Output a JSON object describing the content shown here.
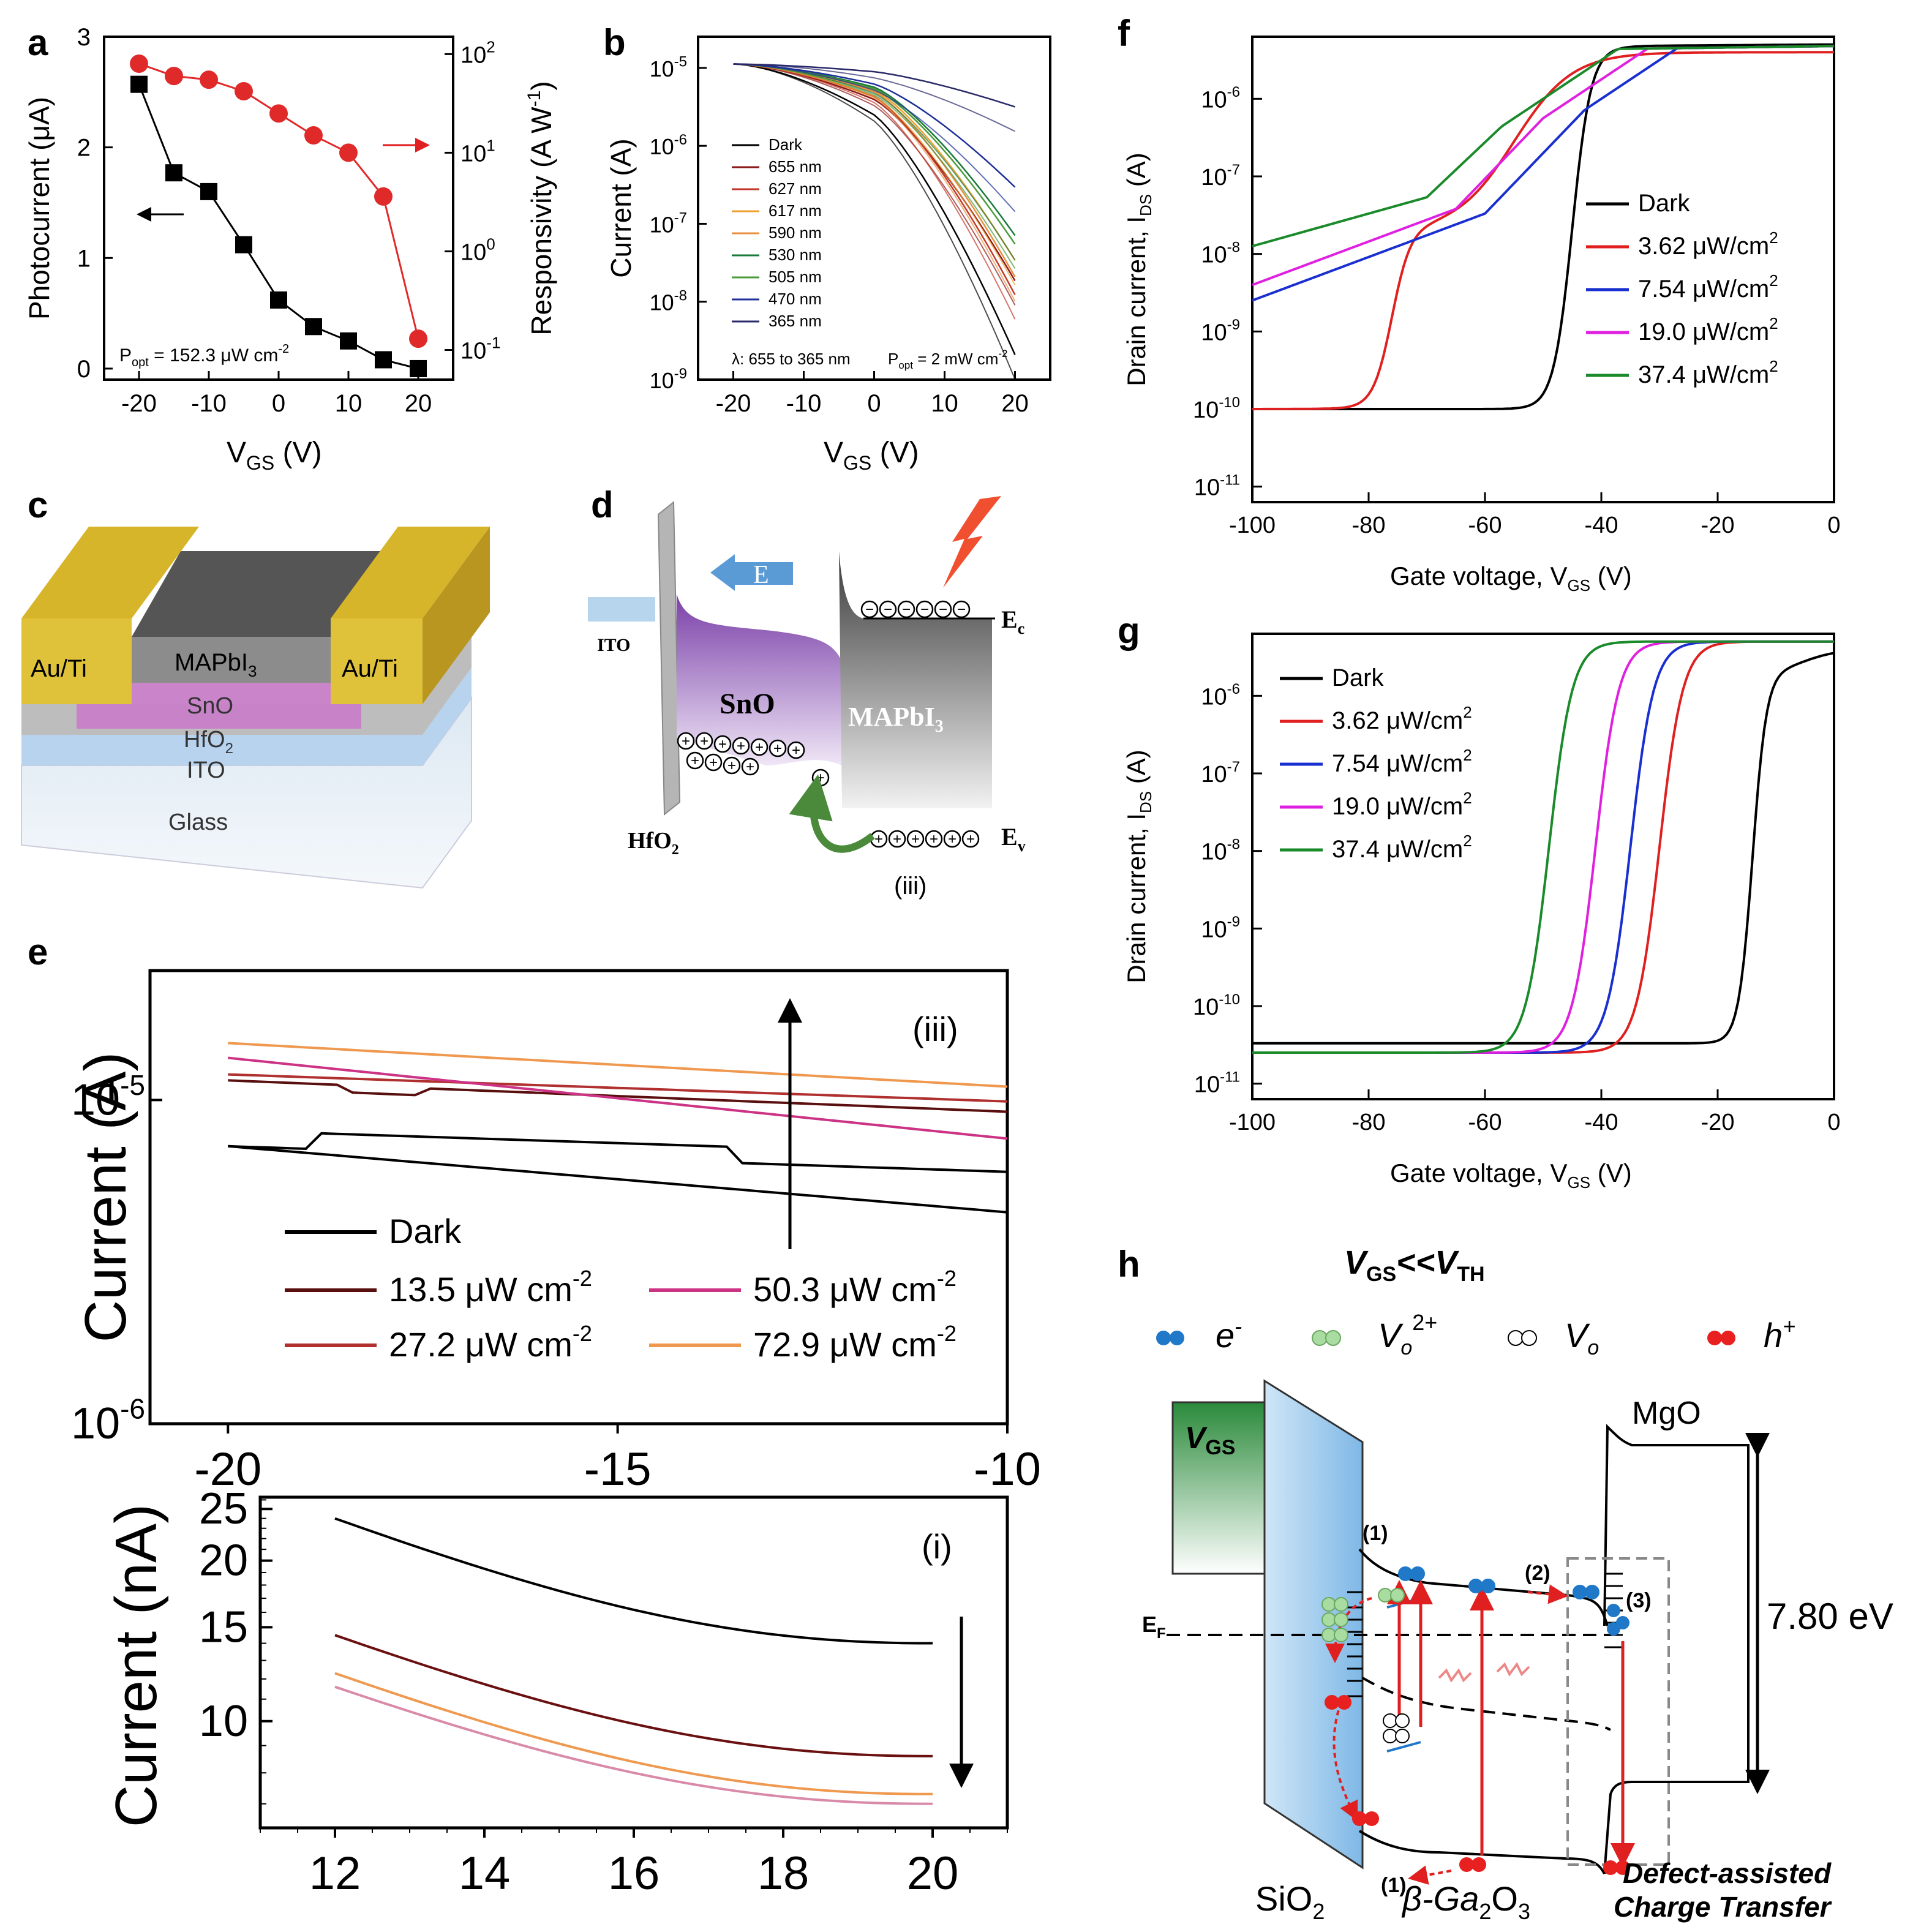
{
  "panel_labels": {
    "a": "a",
    "b": "b",
    "c": "c",
    "d": "d",
    "e": "e",
    "f": "f",
    "g": "g",
    "h": "h"
  },
  "chart_data": [
    {
      "id": "a",
      "type": "scatter",
      "xlabel": "V",
      "xlabel_sub": "GS",
      "xlabel_tail": " (V)",
      "ylabel": "Photocurrent (μA)",
      "y2label": "Responsivity (A W",
      "y2label_tail": ")",
      "y2label_sup": "-1",
      "annotation": "P",
      "annotation_sub": "opt",
      "annotation_tail": " = 152.3 μW cm",
      "annotation_sup": "-2",
      "xlim": [
        -25,
        25
      ],
      "ylim": [
        -0.1,
        3.0
      ],
      "y2lim": [
        0.05,
        150
      ],
      "xticks": [
        "-20",
        "-10",
        "0",
        "10",
        "20"
      ],
      "yticks": [
        "0",
        "1",
        "2",
        "3"
      ],
      "y2ticks_base": [
        "10",
        "10",
        "10",
        "10"
      ],
      "y2ticks_exp": [
        "-1",
        "0",
        "1",
        "2"
      ],
      "series": [
        {
          "name": "Photocurrent",
          "axis": "left",
          "color": "#000000",
          "x": [
            -20,
            -15,
            -10,
            -5,
            0,
            5,
            10,
            15,
            20
          ],
          "y": [
            2.57,
            1.77,
            1.6,
            1.12,
            0.62,
            0.38,
            0.25,
            0.08,
            0.0
          ]
        },
        {
          "name": "Responsivity",
          "axis": "right",
          "color": "#e02a2a",
          "x": [
            -20,
            -15,
            -10,
            -5,
            0,
            5,
            10,
            15,
            20
          ],
          "y": [
            80,
            60,
            55,
            42,
            25,
            15,
            10,
            3.6,
            0.13
          ]
        }
      ]
    },
    {
      "id": "b",
      "type": "line",
      "xlabel": "V",
      "xlabel_sub": "GS",
      "xlabel_tail": " (V)",
      "ylabel": "Current (A)",
      "xlim": [
        -25,
        25
      ],
      "ylim_log10": [
        -9,
        -4.6
      ],
      "xticks": [
        "-20",
        "-10",
        "0",
        "10",
        "20"
      ],
      "yticks_exp": [
        "-9",
        "-8",
        "-7",
        "-6",
        "-5"
      ],
      "annotation_left": "λ: 655 to 365 nm",
      "annotation_right": "P",
      "annotation_right_sub": "opt",
      "annotation_right_tail": " = 2 mW cm",
      "annotation_right_sup": "-2",
      "series": [
        {
          "name": "Dark",
          "color": "#000000",
          "end_log": -8.35,
          "mid_log": -6.6
        },
        {
          "name": "655 nm",
          "color": "#8b1a1a",
          "end_log": -7.5,
          "mid_log": -6.1
        },
        {
          "name": "627 nm",
          "color": "#c0392b",
          "end_log": -7.7,
          "mid_log": -6.0
        },
        {
          "name": "617 nm",
          "color": "#f0a030",
          "end_log": -7.3,
          "mid_log": -5.8
        },
        {
          "name": "590 nm",
          "color": "#e89040",
          "end_log": -7.5,
          "mid_log": -5.85
        },
        {
          "name": "530 nm",
          "color": "#1a7a3a",
          "end_log": -7.0,
          "mid_log": -5.7
        },
        {
          "name": "505 nm",
          "color": "#4a9a3a",
          "end_log": -7.1,
          "mid_log": -5.75
        },
        {
          "name": "470 nm",
          "color": "#1f2f9a",
          "end_log": -6.4,
          "mid_log": -5.6
        },
        {
          "name": "365 nm",
          "color": "#2a2a6a",
          "end_log": -5.45,
          "mid_log": -5.2
        }
      ]
    },
    {
      "id": "e_top",
      "type": "line",
      "ylabel": "Current (A)",
      "xlim": [
        -21,
        -10
      ],
      "ylim_log10": [
        -6,
        -4.6
      ],
      "xticks": [
        "-20",
        "-15",
        "-10"
      ],
      "yticks_exp": [
        "-6",
        "-5"
      ],
      "annotation": "(iii)",
      "legend": [
        "Dark",
        "13.5 μW cm",
        "27.2 μW cm",
        "50.3 μW cm",
        "72.9 μW cm"
      ],
      "legend_sup": "-2",
      "series": [
        {
          "name": "Dark",
          "color": "#000000",
          "y_start": 7.2e-06,
          "y_end": 4.5e-06
        },
        {
          "name": "Dark (2)",
          "color": "#000000",
          "y_start": 7.2e-06,
          "y_end": 6e-06
        },
        {
          "name": "13.5 μW cm-2",
          "color": "#5a0f0f",
          "y_start": 1.15e-05,
          "y_end": 9.2e-06
        },
        {
          "name": "27.2 μW cm-2",
          "color": "#b03030",
          "y_start": 1.2e-05,
          "y_end": 9.9e-06
        },
        {
          "name": "50.3 μW cm-2",
          "color": "#cc3385",
          "y_start": 1.35e-05,
          "y_end": 7.6e-06
        },
        {
          "name": "72.9 μW cm-2",
          "color": "#ef9950",
          "y_start": 1.5e-05,
          "y_end": 1.1e-05
        }
      ]
    },
    {
      "id": "e_bottom",
      "type": "line",
      "ylabel": "Current (nA)",
      "xlim": [
        11,
        21
      ],
      "ylim_log10": [
        0.8,
        1.42
      ],
      "xticks": [
        "12",
        "14",
        "16",
        "18",
        "20"
      ],
      "yticks": [
        "10",
        "15",
        "20",
        "25"
      ],
      "annotation": "(i)",
      "series": [
        {
          "name": "Dark",
          "color": "#000000",
          "y_start": 24,
          "y_end": 14
        },
        {
          "name": "13.5 μW cm-2",
          "color": "#6a1010",
          "y_start": 14.5,
          "y_end": 8.6
        },
        {
          "name": "72.9 μW cm-2",
          "color": "#ef9950",
          "y_start": 12.3,
          "y_end": 7.3
        },
        {
          "name": "50.3 μW cm-2",
          "color": "#d98aa8",
          "y_start": 11.6,
          "y_end": 7.0
        }
      ]
    },
    {
      "id": "f",
      "type": "line",
      "xlabel": "Gate voltage, V",
      "xlabel_sub": "GS",
      "xlabel_tail": " (V)",
      "ylabel": "Drain current, I",
      "ylabel_sub": "DS",
      "ylabel_tail": " (A)",
      "xlim": [
        -100,
        0
      ],
      "ylim_log10": [
        -11.2,
        -5.2
      ],
      "xticks": [
        "-100",
        "-80",
        "-60",
        "-40",
        "-20",
        "0"
      ],
      "yticks_exp": [
        "-11",
        "-10",
        "-9",
        "-8",
        "-7",
        "-6"
      ],
      "legend": [
        "Dark",
        "3.62 μW/cm",
        "7.54 μW/cm",
        "19.0 μW/cm",
        "37.4 μW/cm"
      ],
      "legend_sup": "2",
      "series": [
        {
          "name": "Dark",
          "color": "#000000"
        },
        {
          "name": "3.62 μW/cm2",
          "color": "#e02020"
        },
        {
          "name": "7.54 μW/cm2",
          "color": "#1a2fd0"
        },
        {
          "name": "19.0 μW/cm2",
          "color": "#e020e0"
        },
        {
          "name": "37.4 μW/cm2",
          "color": "#1a8a2a"
        }
      ]
    },
    {
      "id": "g",
      "type": "line",
      "xlabel": "Gate voltage, V",
      "xlabel_sub": "GS",
      "xlabel_tail": " (V)",
      "ylabel": "Drain current, I",
      "ylabel_sub": "DS",
      "ylabel_tail": " (A)",
      "xlim": [
        -100,
        0
      ],
      "ylim_log10": [
        -11.2,
        -5.2
      ],
      "xticks": [
        "-100",
        "-80",
        "-60",
        "-40",
        "-20",
        "0"
      ],
      "yticks_exp": [
        "-11",
        "-10",
        "-9",
        "-8",
        "-7",
        "-6"
      ],
      "legend": [
        "Dark",
        "3.62 μW/cm",
        "7.54 μW/cm",
        "19.0 μW/cm",
        "37.4 μW/cm"
      ],
      "legend_sup": "2",
      "series": [
        {
          "name": "Dark",
          "color": "#000000",
          "vth": -14
        },
        {
          "name": "3.62 μW/cm2",
          "color": "#e02020",
          "vth": -30
        },
        {
          "name": "7.54 μW/cm2",
          "color": "#1a2fd0",
          "vth": -35
        },
        {
          "name": "19.0 μW/cm2",
          "color": "#e020e0",
          "vth": -41
        },
        {
          "name": "37.4 μW/cm2",
          "color": "#1a8a2a",
          "vth": -49
        }
      ]
    }
  ],
  "diagram_c": {
    "au_left": "Au/Ti",
    "au_right": "Au/Ti",
    "mapbi": "MAPbI",
    "mapbi_sub": "3",
    "sno": "SnO",
    "hfo": "HfO",
    "hfo_sub": "2",
    "ito": "ITO",
    "glass": "Glass"
  },
  "diagram_d": {
    "e_field": "E",
    "ito": "ITO",
    "sno": "SnO",
    "mapbi": "MAPbI",
    "mapbi_sub": "3",
    "hfo": "HfO",
    "hfo_sub": "2",
    "ec": "E",
    "ec_sub": "c",
    "ev": "E",
    "ev_sub": "v",
    "iii": "(iii)",
    "minus": "−",
    "plus": "+"
  },
  "diagram_h": {
    "title_v": "V",
    "title_sub1": "GS",
    "title_lt": "<<V",
    "title_sub2": "TH",
    "legend_e": "e",
    "legend_e_sup": "-",
    "legend_vo2": "V",
    "legend_vo2_sub": "o",
    "legend_vo2_sup": "2+",
    "legend_vo": "V",
    "legend_vo_sub": "o",
    "legend_h": "h",
    "legend_h_sup": "+",
    "vgs": "V",
    "vgs_sub": "GS",
    "mgo": "MgO",
    "ef": "E",
    "ef_sub": "F",
    "gap": "7.80 eV",
    "sio2": "SiO",
    "sio2_sub": "2",
    "ga2o3": "β-Ga",
    "ga2o3_sub1": "2",
    "ga2o3_o": "O",
    "ga2o3_sub2": "3",
    "step1a": "(1)",
    "step1b": "(1)",
    "step2": "(2)",
    "step3": "(3)",
    "caption_1": "Defect-assisted",
    "caption_2": "Charge Transfer"
  }
}
